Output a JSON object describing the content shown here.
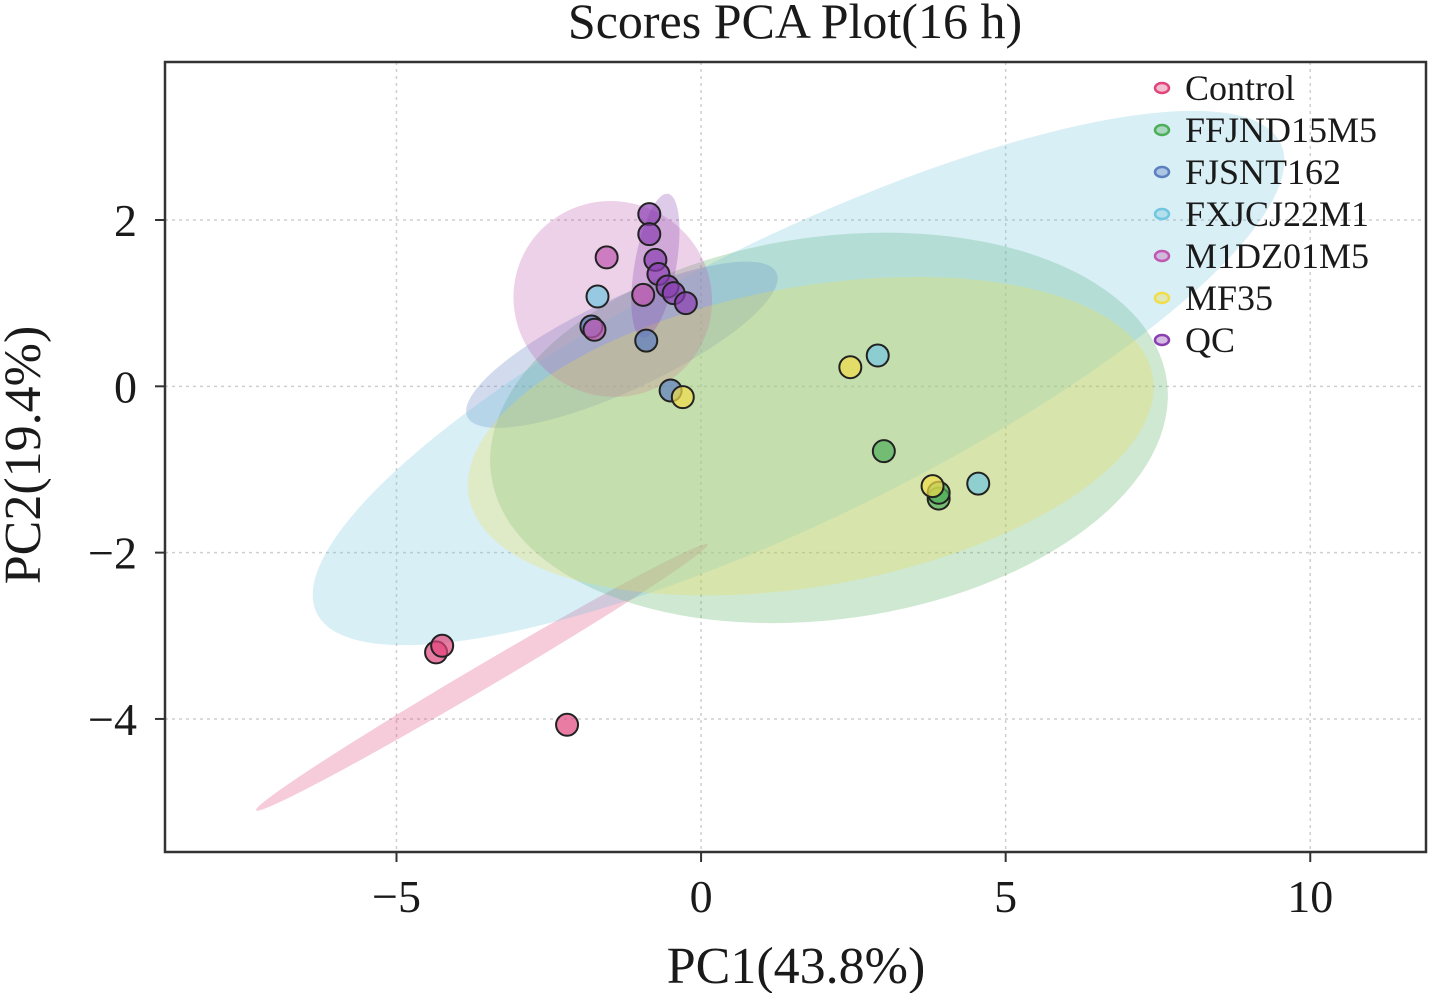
{
  "chart_data": {
    "type": "scatter",
    "title": "Scores PCA Plot(16 h)",
    "xlabel": "PC1(43.8%)",
    "ylabel": "PC2(19.4%)",
    "xlim": [
      -8.8,
      11.9
    ],
    "ylim": [
      -5.6,
      3.9
    ],
    "xticks": [
      -5,
      0,
      5,
      10
    ],
    "yticks": [
      -4,
      -2,
      0,
      2
    ],
    "xtick_labels": [
      "−5",
      "0",
      "5",
      "10"
    ],
    "ytick_labels": [
      "−4",
      "−2",
      "0",
      "2"
    ],
    "grid": true,
    "legend_position": "top-right",
    "series": [
      {
        "name": "Control",
        "color": "#e0457b",
        "points": [
          [
            -4.35,
            -3.2
          ],
          [
            -4.25,
            -3.12
          ],
          [
            -2.2,
            -4.07
          ]
        ],
        "ellipse": {
          "cx": -3.6,
          "cy": -3.5,
          "rx": 4.3,
          "ry": 0.14,
          "angle_deg": -30.5
        }
      },
      {
        "name": "FFJND15M5",
        "color": "#4fae5a",
        "points": [
          [
            3.0,
            -0.78
          ],
          [
            3.9,
            -1.35
          ],
          [
            3.9,
            -1.28
          ]
        ],
        "ellipse": {
          "cx": 2.1,
          "cy": -0.5,
          "rx": 5.6,
          "ry": 2.3,
          "angle_deg": -8
        }
      },
      {
        "name": "FJSNT162",
        "color": "#5d7fc0",
        "points": [
          [
            -1.8,
            0.72
          ],
          [
            -0.9,
            0.55
          ],
          [
            -0.5,
            -0.05
          ]
        ],
        "ellipse": {
          "cx": -1.3,
          "cy": 0.5,
          "rx": 2.8,
          "ry": 0.55,
          "angle_deg": -25
        }
      },
      {
        "name": "FXJCJ22M1",
        "color": "#72c6e0",
        "points": [
          [
            -1.7,
            1.08
          ],
          [
            2.9,
            0.37
          ],
          [
            4.55,
            -1.17
          ]
        ],
        "ellipse": {
          "cx": 1.6,
          "cy": 0.1,
          "rx": 8.8,
          "ry": 1.7,
          "angle_deg": -26
        }
      },
      {
        "name": "M1DZ01M5",
        "color": "#c058b0",
        "points": [
          [
            -1.55,
            1.55
          ],
          [
            -1.75,
            0.68
          ],
          [
            -0.95,
            1.1
          ]
        ],
        "ellipse": {
          "cx": -1.45,
          "cy": 1.05,
          "rx": 1.6,
          "ry": 1.2,
          "angle_deg": -62
        }
      },
      {
        "name": "MF35",
        "color": "#f0dd4a",
        "points": [
          [
            2.45,
            0.23
          ],
          [
            -0.3,
            -0.13
          ],
          [
            3.8,
            -1.2
          ]
        ],
        "ellipse": {
          "cx": 1.8,
          "cy": -0.6,
          "rx": 5.7,
          "ry": 1.8,
          "angle_deg": -10
        }
      },
      {
        "name": "QC",
        "color": "#8a3fb0",
        "points": [
          [
            -0.85,
            2.07
          ],
          [
            -0.85,
            1.83
          ],
          [
            -0.75,
            1.52
          ],
          [
            -0.7,
            1.35
          ],
          [
            -0.55,
            1.2
          ],
          [
            -0.45,
            1.12
          ],
          [
            -0.25,
            1.0
          ]
        ],
        "ellipse": {
          "cx": -0.75,
          "cy": 1.45,
          "rx": 1.2,
          "ry": 0.25,
          "angle_deg": -80
        }
      }
    ]
  }
}
